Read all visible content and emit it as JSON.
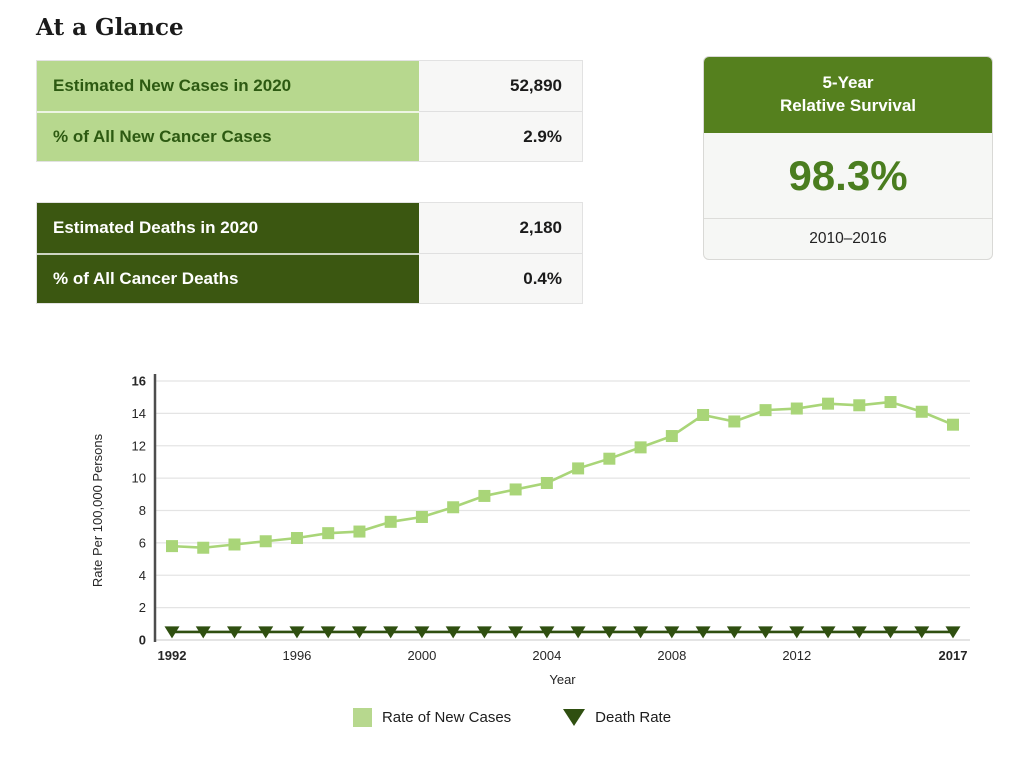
{
  "page": {
    "title": "At a Glance"
  },
  "colors": {
    "light_green": "#b7d88e",
    "dark_green": "#3b5711",
    "header_green": "#55801e",
    "value_green": "#4a7d1f",
    "line_green": "#a9d578",
    "death_green": "#2f4f10",
    "grid_gray": "#e4e4e4",
    "axis_gray": "#4d4d4d"
  },
  "stats_tables": {
    "new_cases": {
      "rows": [
        {
          "label": "Estimated New Cases in 2020",
          "value": "52,890"
        },
        {
          "label": "% of All New Cancer Cases",
          "value": "2.9%"
        }
      ]
    },
    "deaths": {
      "rows": [
        {
          "label": "Estimated Deaths in 2020",
          "value": "2,180"
        },
        {
          "label": "% of All Cancer Deaths",
          "value": "0.4%"
        }
      ]
    }
  },
  "survival_card": {
    "header_line1": "5-Year",
    "header_line2": "Relative Survival",
    "value": "98.3%",
    "period": "2010–2016"
  },
  "chart_data": {
    "type": "line",
    "title": "",
    "xlabel": "Year",
    "ylabel": "Rate Per 100,000 Persons",
    "ylim": [
      0,
      16
    ],
    "ytick_step": 2,
    "grid": true,
    "legend_position": "bottom",
    "x": [
      1992,
      1993,
      1994,
      1995,
      1996,
      1997,
      1998,
      1999,
      2000,
      2001,
      2002,
      2003,
      2004,
      2005,
      2006,
      2007,
      2008,
      2009,
      2010,
      2011,
      2012,
      2013,
      2014,
      2015,
      2016,
      2017
    ],
    "xticks": [
      1992,
      1996,
      2000,
      2004,
      2008,
      2012,
      2017
    ],
    "bold_xticks": [
      1992,
      2017
    ],
    "bold_yticks": [
      0,
      16
    ],
    "series": [
      {
        "name": "Rate of New Cases",
        "marker": "square",
        "color": "#a9d578",
        "values": [
          5.8,
          5.7,
          5.9,
          6.1,
          6.3,
          6.6,
          6.7,
          7.3,
          7.6,
          8.2,
          8.9,
          9.3,
          9.7,
          10.6,
          11.2,
          11.9,
          12.6,
          13.9,
          13.5,
          14.2,
          14.3,
          14.6,
          14.5,
          14.7,
          14.1,
          13.3
        ]
      },
      {
        "name": "Death Rate",
        "marker": "triangle-down",
        "color": "#2f4f10",
        "values": [
          0.5,
          0.5,
          0.5,
          0.5,
          0.5,
          0.5,
          0.5,
          0.5,
          0.5,
          0.5,
          0.5,
          0.5,
          0.5,
          0.5,
          0.5,
          0.5,
          0.5,
          0.5,
          0.5,
          0.5,
          0.5,
          0.5,
          0.5,
          0.5,
          0.5,
          0.5
        ]
      }
    ]
  }
}
